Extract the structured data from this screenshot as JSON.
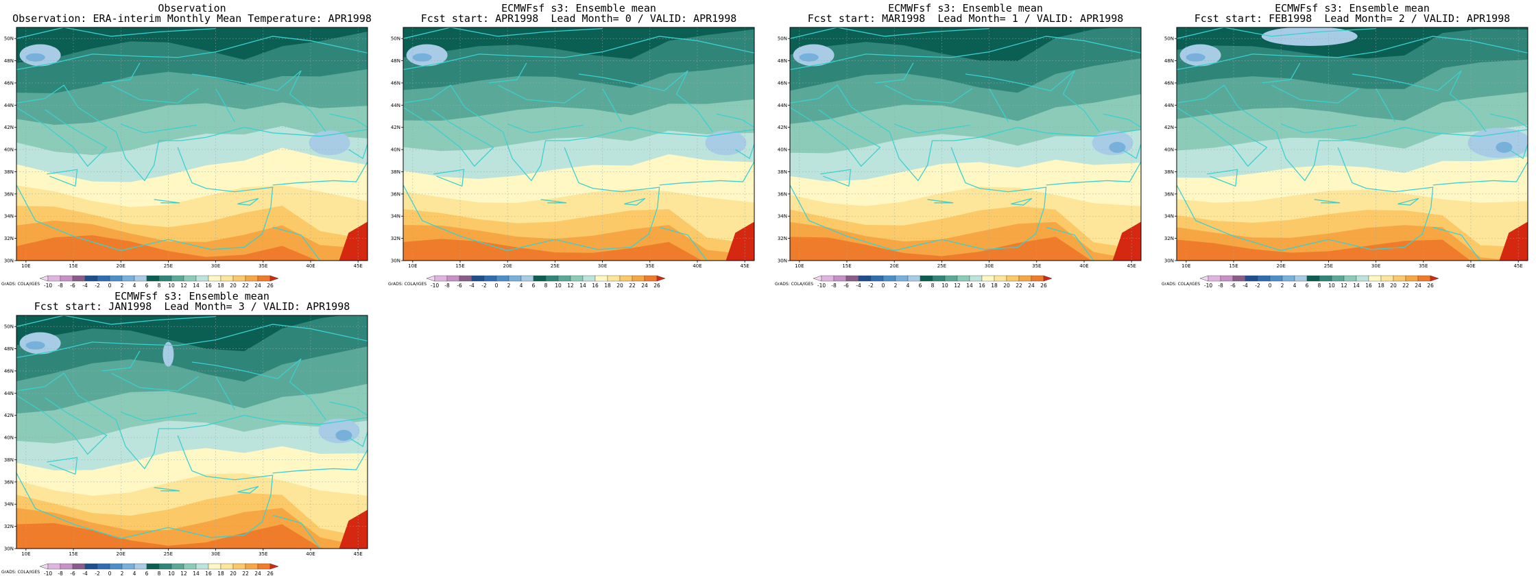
{
  "figure": {
    "panels": [
      {
        "title_line1": "Observation",
        "title_line2": "Observation: ERA-interim Monthly Mean Temperature: APR1998"
      },
      {
        "title_line1": "ECMWFsf s3: Ensemble mean",
        "title_line2": "Fcst start: APR1998  Lead Month= 0 / VALID: APR1998"
      },
      {
        "title_line1": "ECMWFsf s3: Ensemble mean",
        "title_line2": "Fcst start: MAR1998  Lead Month= 1 / VALID: APR1998"
      },
      {
        "title_line1": "ECMWFsf s3: Ensemble mean",
        "title_line2": "Fcst start: FEB1998  Lead Month= 2 / VALID: APR1998"
      },
      {
        "title_line1": "ECMWFsf s3: Ensemble mean",
        "title_line2": "Fcst start: JAN1998  Lead Month= 3 / VALID: APR1998"
      }
    ],
    "lat_ticks": [
      "30N",
      "32N",
      "34N",
      "36N",
      "38N",
      "40N",
      "42N",
      "44N",
      "46N",
      "48N",
      "50N"
    ],
    "lon_ticks": [
      "10E",
      "15E",
      "20E",
      "25E",
      "30E",
      "35E",
      "40E",
      "45E"
    ],
    "colorbar": {
      "labels": [
        "-10",
        "-8",
        "-6",
        "-4",
        "-2",
        "0",
        "2",
        "4",
        "6",
        "8",
        "10",
        "12",
        "14",
        "16",
        "18",
        "20",
        "22",
        "24",
        "26"
      ],
      "colors": [
        "#f0d8f0",
        "#dfb4df",
        "#c890c8",
        "#8a5c8a",
        "#1f4e8c",
        "#2f6db0",
        "#4a8fc8",
        "#78b0dc",
        "#a8cce6",
        "#0b5e52",
        "#2e8578",
        "#5aa898",
        "#8ccbb8",
        "#bde4dc",
        "#fff8c4",
        "#fde699",
        "#fbc968",
        "#f6a642",
        "#ef7c2a",
        "#d42810"
      ],
      "credit": "GrADS: COLA/IGES"
    }
  }
}
